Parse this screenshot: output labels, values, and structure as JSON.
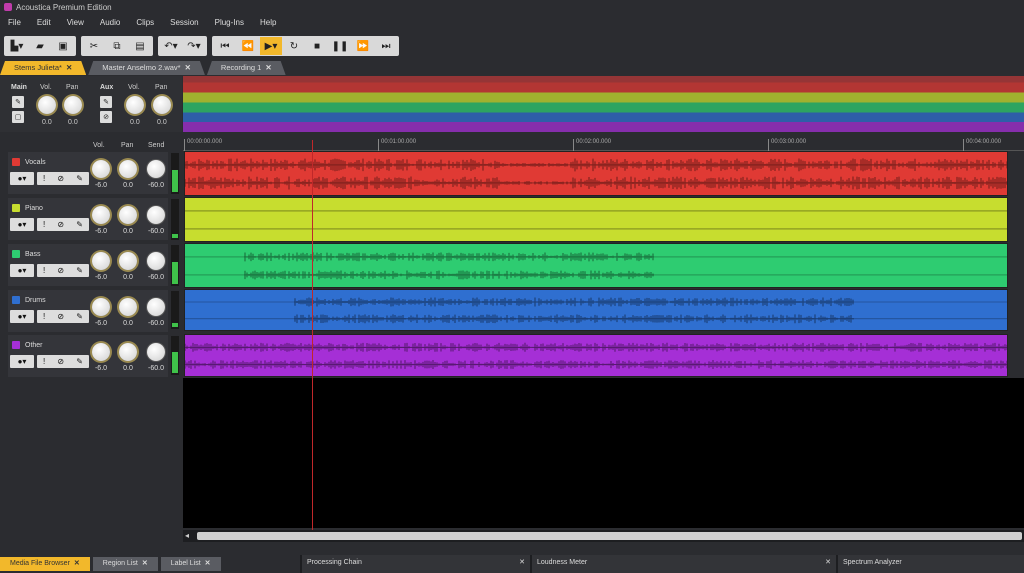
{
  "app": {
    "title": "Acoustica Premium Edition"
  },
  "menu": [
    "File",
    "Edit",
    "View",
    "Audio",
    "Clips",
    "Session",
    "Plug-Ins",
    "Help"
  ],
  "toolbar": {
    "icons": [
      "new-file-icon",
      "open-folder-icon",
      "save-icon",
      "cut-icon",
      "copy-icon",
      "paste-icon",
      "undo-icon",
      "redo-icon",
      "go-to-start-icon",
      "rewind-icon",
      "play-icon",
      "loop-icon",
      "stop-icon",
      "pause-icon",
      "fast-forward-icon",
      "go-to-end-icon"
    ]
  },
  "doc_tabs": [
    {
      "label": "Stems Julieta*",
      "active": true
    },
    {
      "label": "Master Anselmo 2.wav*",
      "active": false
    },
    {
      "label": "Recording 1",
      "active": false
    }
  ],
  "master": {
    "main_label": "Main",
    "aux_label": "Aux",
    "vol_label": "Vol.",
    "pan_label": "Pan",
    "main_vol": "0.0",
    "main_pan": "0.0",
    "aux_vol": "0.0",
    "aux_pan": "0.0"
  },
  "track_headers": {
    "vol": "Vol.",
    "pan": "Pan",
    "send": "Send"
  },
  "ruler": [
    "00:00:00.000",
    "00:01:00.000",
    "00:02:00.000",
    "00:03:00.000",
    "00:04:00.000"
  ],
  "tracks": [
    {
      "name": "Vocals",
      "color": "#e03a34",
      "vol": "-6.0",
      "pan": "0.0",
      "send": "-60.0"
    },
    {
      "name": "Piano",
      "color": "#c7dd2f",
      "vol": "-6.0",
      "pan": "0.0",
      "send": "-60.0"
    },
    {
      "name": "Bass",
      "color": "#2ecc71",
      "vol": "-6.0",
      "pan": "0.0",
      "send": "-60.0"
    },
    {
      "name": "Drums",
      "color": "#2f6fd0",
      "vol": "-6.0",
      "pan": "0.0",
      "send": "-60.0"
    },
    {
      "name": "Other",
      "color": "#a52fd6",
      "vol": "-6.0",
      "pan": "0.0",
      "send": "-60.0"
    }
  ],
  "bottom_tabs": [
    {
      "label": "Media File Browser",
      "active": true
    },
    {
      "label": "Region List",
      "active": false
    },
    {
      "label": "Label List",
      "active": false
    }
  ],
  "panels": [
    "Processing Chain",
    "Loudness Meter",
    "Spectrum Analyzer"
  ]
}
